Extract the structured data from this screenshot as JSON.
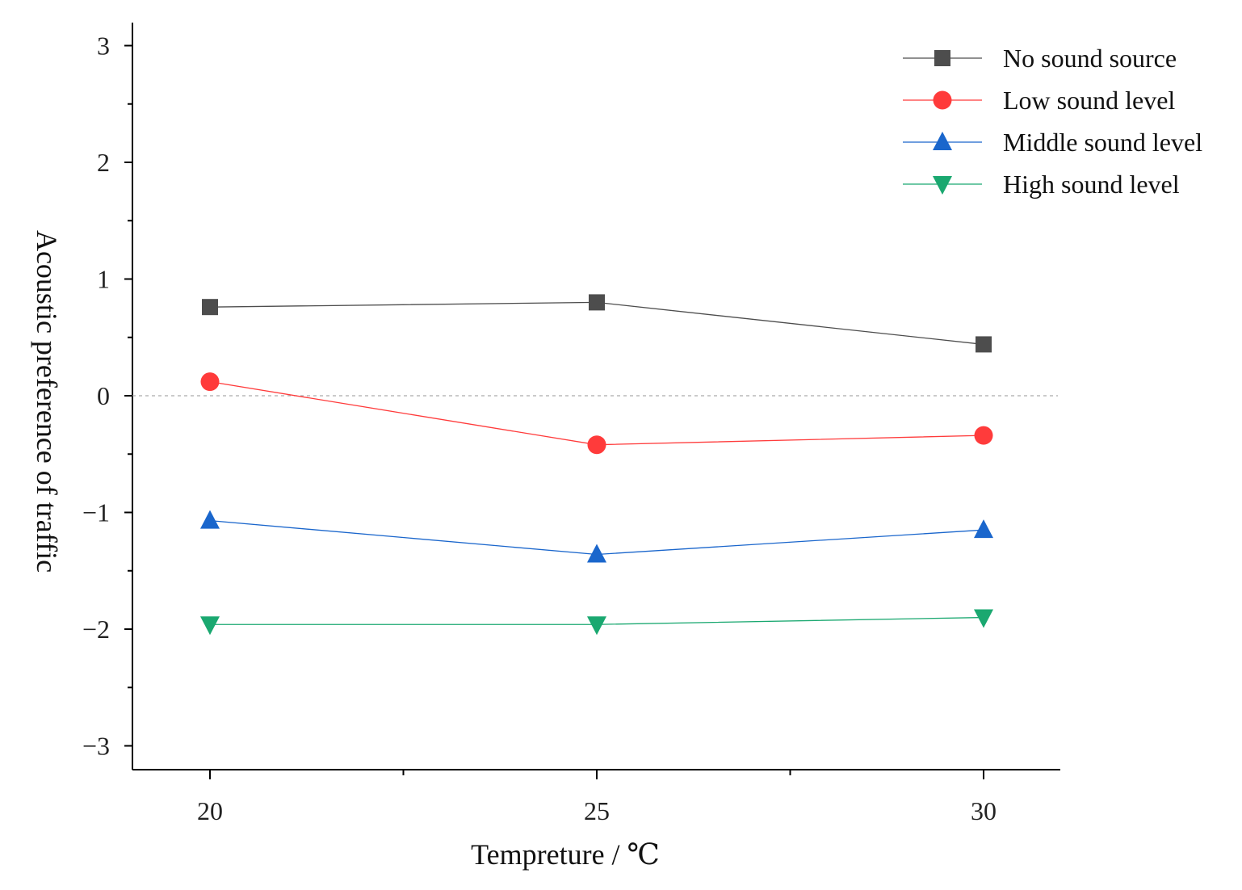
{
  "chart_data": {
    "type": "line",
    "title": "",
    "xlabel": "Tempreture / ℃",
    "ylabel": "Acoustic preference of traffic",
    "x": [
      20,
      25,
      30
    ],
    "xticks": [
      "20",
      "25",
      "30"
    ],
    "yticks": [
      "3",
      "2",
      "1",
      "0",
      "−1",
      "−2",
      "−3"
    ],
    "ytick_values": [
      3,
      2,
      1,
      0,
      -1,
      -2,
      -3
    ],
    "xlim": [
      19,
      31
    ],
    "ylim": [
      -3.2,
      3.2
    ],
    "reference_line_y": 0,
    "grid": false,
    "legend_position": "top-right",
    "series": [
      {
        "name": "No sound source",
        "marker": "square",
        "color": "#4d4d4d",
        "values": [
          0.76,
          0.8,
          0.44
        ]
      },
      {
        "name": "Low sound level",
        "marker": "circle",
        "color": "#ff3b3b",
        "values": [
          0.12,
          -0.42,
          -0.34
        ]
      },
      {
        "name": "Middle sound level",
        "marker": "triangle-up",
        "color": "#1a66cc",
        "values": [
          -1.07,
          -1.36,
          -1.15
        ]
      },
      {
        "name": "High sound level",
        "marker": "triangle-down",
        "color": "#1aa870",
        "values": [
          -1.96,
          -1.96,
          -1.9
        ]
      }
    ]
  }
}
